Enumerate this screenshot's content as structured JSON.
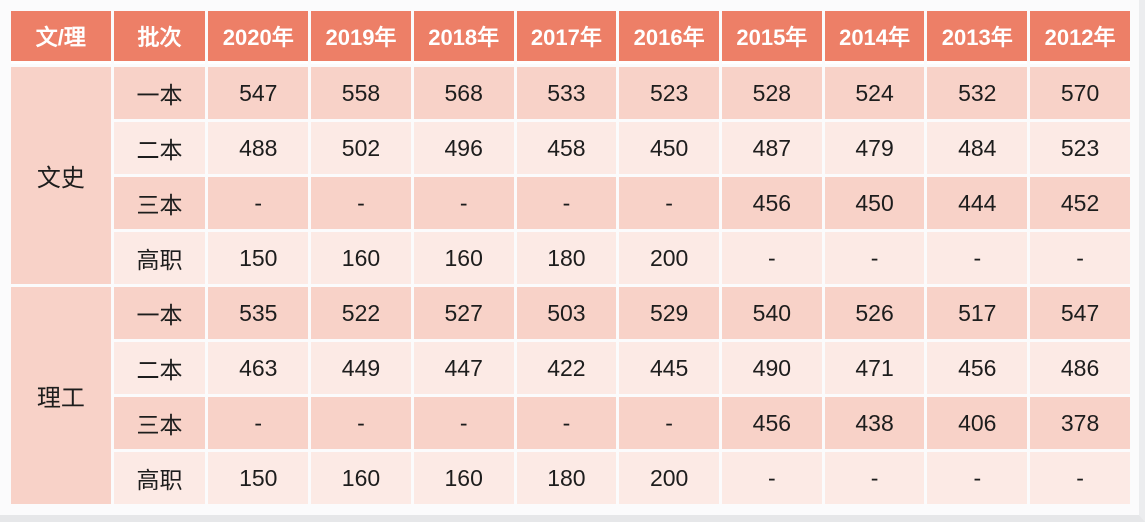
{
  "table": {
    "columns": [
      "文/理",
      "批次",
      "2020年",
      "2019年",
      "2018年",
      "2017年",
      "2016年",
      "2015年",
      "2014年",
      "2013年",
      "2012年"
    ],
    "groups": [
      {
        "name": "文史",
        "rows": [
          {
            "batch": "一本",
            "values": [
              "547",
              "558",
              "568",
              "533",
              "523",
              "528",
              "524",
              "532",
              "570"
            ]
          },
          {
            "batch": "二本",
            "values": [
              "488",
              "502",
              "496",
              "458",
              "450",
              "487",
              "479",
              "484",
              "523"
            ]
          },
          {
            "batch": "三本",
            "values": [
              "-",
              "-",
              "-",
              "-",
              "-",
              "456",
              "450",
              "444",
              "452"
            ]
          },
          {
            "batch": "高职",
            "values": [
              "150",
              "160",
              "160",
              "180",
              "200",
              "-",
              "-",
              "-",
              "-"
            ]
          }
        ]
      },
      {
        "name": "理工",
        "rows": [
          {
            "batch": "一本",
            "values": [
              "535",
              "522",
              "527",
              "503",
              "529",
              "540",
              "526",
              "517",
              "547"
            ]
          },
          {
            "batch": "二本",
            "values": [
              "463",
              "449",
              "447",
              "422",
              "445",
              "490",
              "471",
              "456",
              "486"
            ]
          },
          {
            "batch": "三本",
            "values": [
              "-",
              "-",
              "-",
              "-",
              "-",
              "456",
              "438",
              "406",
              "378"
            ]
          },
          {
            "batch": "高职",
            "values": [
              "150",
              "160",
              "160",
              "180",
              "200",
              "-",
              "-",
              "-",
              "-"
            ]
          }
        ]
      }
    ]
  },
  "colors": {
    "header_bg": "#ED7F67",
    "header_text": "#FFFFFF",
    "row_dark": "#F8D2C8",
    "row_light": "#FCEAE5",
    "cell_text": "#1D1D1D",
    "grid_white": "#FFFFFF",
    "page_edge": "#E6E7E9"
  },
  "chart_data": {
    "type": "table",
    "columns": [
      "文/理",
      "批次",
      "2020年",
      "2019年",
      "2018年",
      "2017年",
      "2016年",
      "2015年",
      "2014年",
      "2013年",
      "2012年"
    ],
    "rows": [
      [
        "文史",
        "一本",
        "547",
        "558",
        "568",
        "533",
        "523",
        "528",
        "524",
        "532",
        "570"
      ],
      [
        "文史",
        "二本",
        "488",
        "502",
        "496",
        "458",
        "450",
        "487",
        "479",
        "484",
        "523"
      ],
      [
        "文史",
        "三本",
        "-",
        "-",
        "-",
        "-",
        "-",
        "456",
        "450",
        "444",
        "452"
      ],
      [
        "文史",
        "高职",
        "150",
        "160",
        "160",
        "180",
        "200",
        "-",
        "-",
        "-",
        "-"
      ],
      [
        "理工",
        "一本",
        "535",
        "522",
        "527",
        "503",
        "529",
        "540",
        "526",
        "517",
        "547"
      ],
      [
        "理工",
        "二本",
        "463",
        "449",
        "447",
        "422",
        "445",
        "490",
        "471",
        "456",
        "486"
      ],
      [
        "理工",
        "三本",
        "-",
        "-",
        "-",
        "-",
        "-",
        "456",
        "438",
        "406",
        "378"
      ],
      [
        "理工",
        "高职",
        "150",
        "160",
        "160",
        "180",
        "200",
        "-",
        "-",
        "-",
        "-"
      ]
    ],
    "title": "",
    "legend": "none",
    "grid": "white cell separators on pink alternating rows"
  }
}
